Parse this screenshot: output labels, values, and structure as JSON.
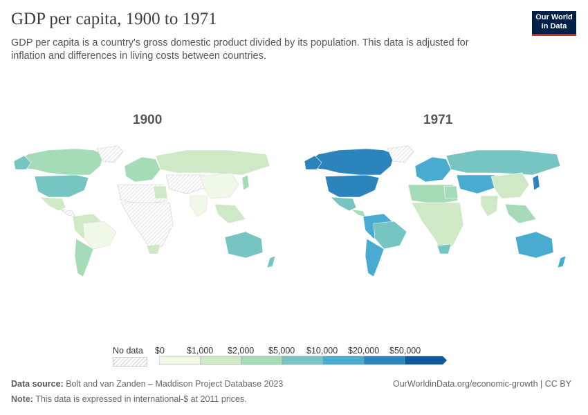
{
  "header": {
    "title": "GDP per capita, 1900 to 1971",
    "subtitle": "GDP per capita is a country's gross domestic product divided by its population. This data is adjusted for inflation and differences in living costs between countries."
  },
  "logo": {
    "line1": "Our World",
    "line2": "in Data"
  },
  "maps": [
    {
      "year": "1900"
    },
    {
      "year": "1971"
    }
  ],
  "legend": {
    "nodata_label": "No data",
    "ticks": [
      "$0",
      "$1,000",
      "$2,000",
      "$5,000",
      "$10,000",
      "$20,000",
      "$50,000"
    ],
    "colors": [
      "#f0f8e8",
      "#cfe9c6",
      "#a6dbb8",
      "#77c5c2",
      "#4aabd1",
      "#2c84bd",
      "#0d5a9b"
    ]
  },
  "footer": {
    "source_label": "Data source:",
    "source_text": "Bolt and van Zanden – Maddison Project Database 2023",
    "url": "OurWorldinData.org/economic-growth | CC BY",
    "note_label": "Note:",
    "note_text": "This data is expressed in international-$ at 2011 prices."
  }
}
